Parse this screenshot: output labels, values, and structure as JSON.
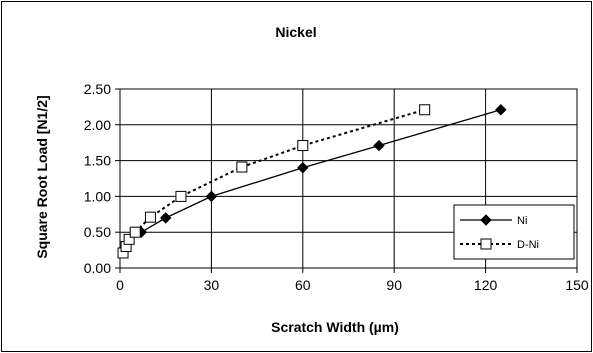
{
  "chart_data": {
    "type": "scatter",
    "title": "Nickel",
    "xlabel": "Scratch Width (µm)",
    "ylabel": "Square Root Load [N1/2]",
    "xlim": [
      0,
      150
    ],
    "ylim": [
      0,
      2.5
    ],
    "xticks": [
      "0",
      "30",
      "60",
      "90",
      "120",
      "150"
    ],
    "yticks": [
      "0.00",
      "0.50",
      "1.00",
      "1.50",
      "2.00",
      "2.50"
    ],
    "grid": true,
    "legend_position": "bottom-right",
    "series": [
      {
        "name": "Ni",
        "line": "solid",
        "marker": "filled-diamond",
        "color": "#000000",
        "x": [
          7,
          15,
          30,
          60,
          85,
          125
        ],
        "y": [
          0.5,
          0.7,
          1.0,
          1.4,
          1.71,
          2.21
        ]
      },
      {
        "name": "D-Ni",
        "line": "dotted",
        "marker": "open-square",
        "color": "#000000",
        "x": [
          1,
          2,
          3,
          5,
          10,
          20,
          40,
          60,
          100
        ],
        "y": [
          0.21,
          0.3,
          0.4,
          0.5,
          0.71,
          1.0,
          1.41,
          1.71,
          2.21
        ]
      }
    ]
  }
}
